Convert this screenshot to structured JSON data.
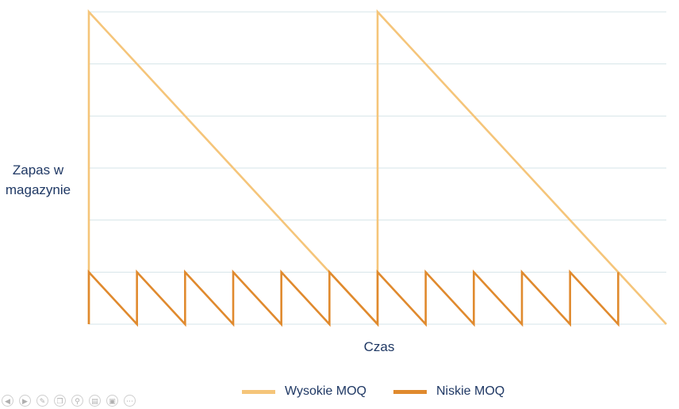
{
  "chart_data": {
    "type": "line",
    "title": "",
    "xlabel": "Czas",
    "ylabel": "Zapas w magazynie",
    "xlim": [
      0,
      12
    ],
    "ylim": [
      0,
      6
    ],
    "grid": true,
    "legend": "bottom-center",
    "series": [
      {
        "name": "Wysokie MOQ",
        "color": "#f5c57a",
        "points": [
          [
            0,
            0
          ],
          [
            0,
            6
          ],
          [
            6,
            0
          ],
          [
            6,
            6
          ],
          [
            12,
            0
          ]
        ]
      },
      {
        "name": "Niskie MOQ",
        "color": "#e08a2e",
        "points": [
          [
            0,
            0
          ],
          [
            0,
            1
          ],
          [
            1,
            0
          ],
          [
            1,
            1
          ],
          [
            2,
            0
          ],
          [
            2,
            1
          ],
          [
            3,
            0
          ],
          [
            3,
            1
          ],
          [
            4,
            0
          ],
          [
            4,
            1
          ],
          [
            5,
            0
          ],
          [
            5,
            1
          ],
          [
            6,
            0
          ],
          [
            6,
            1
          ],
          [
            7,
            0
          ],
          [
            7,
            1
          ],
          [
            8,
            0
          ],
          [
            8,
            1
          ],
          [
            9,
            0
          ],
          [
            9,
            1
          ],
          [
            10,
            0
          ],
          [
            10,
            1
          ],
          [
            11,
            0
          ],
          [
            11,
            1
          ],
          [
            11,
            0
          ]
        ]
      }
    ]
  },
  "toolbar": [
    "prev-icon",
    "next-icon",
    "pen-icon",
    "copy-icon",
    "zoom-icon",
    "subtitles-icon",
    "screen-icon",
    "more-icon"
  ]
}
